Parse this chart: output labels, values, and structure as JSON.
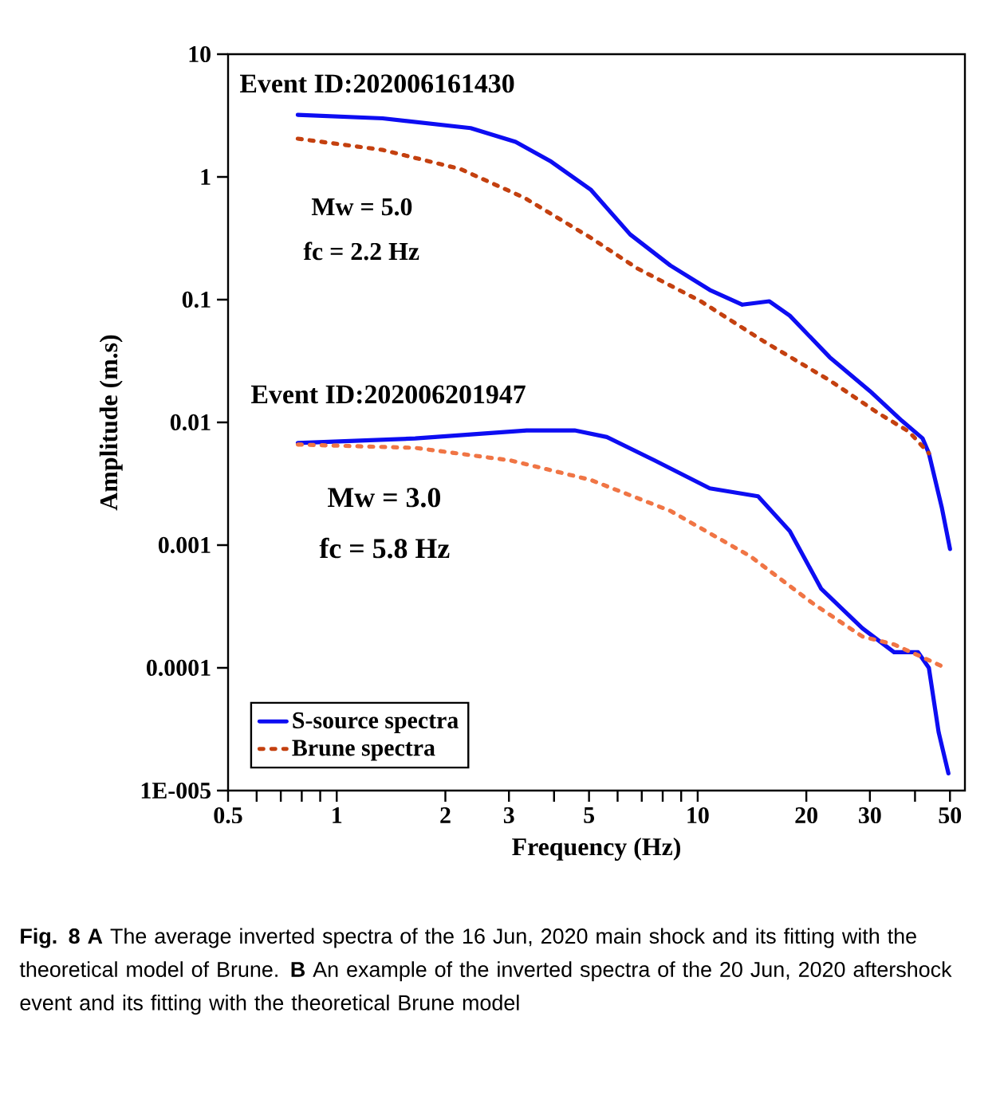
{
  "chart_data": {
    "type": "line",
    "xlabel": "Frequency (Hz)",
    "ylabel": "Amplitude (m.s)",
    "log": "xy",
    "xlim": [
      0.5,
      55
    ],
    "ylim": [
      1e-05,
      10
    ],
    "xticks": [
      0.5,
      {
        "value": 0.6,
        "label": null
      },
      {
        "value": 0.7,
        "label": null
      },
      {
        "value": 0.8,
        "label": null
      },
      {
        "value": 0.9,
        "label": null
      },
      1,
      2,
      3,
      {
        "value": 4,
        "label": null
      },
      5,
      {
        "value": 6,
        "label": null
      },
      {
        "value": 7,
        "label": null
      },
      {
        "value": 8,
        "label": null
      },
      {
        "value": 9,
        "label": null
      },
      10,
      20,
      30,
      {
        "value": 40,
        "label": null
      },
      50
    ],
    "yticks": [
      {
        "value": 1e-05,
        "label": "1E-005"
      },
      0.0001,
      0.001,
      0.01,
      0.1,
      1,
      10
    ],
    "legend": "bottom left",
    "series": [
      {
        "name": "S-source spectra",
        "color": "#0d0df2",
        "line_style": "solid",
        "x": [
          0.78,
          1.34,
          2.35,
          3.13,
          3.9,
          5.05,
          6.5,
          8.4,
          10.8,
          13.3,
          15.8,
          18,
          23.2,
          30,
          36.8,
          42,
          43.7,
          47.5,
          50
        ],
        "values": [
          3.2,
          3.0,
          2.5,
          1.93,
          1.35,
          0.79,
          0.34,
          0.19,
          0.12,
          0.091,
          0.097,
          0.074,
          0.034,
          0.018,
          0.0103,
          0.0074,
          0.0056,
          0.002,
          0.00093
        ]
      },
      {
        "name": "Brune spectra",
        "color": "#c4400f",
        "line_style": "dotted",
        "x": [
          0.78,
          1.34,
          2.2,
          3.3,
          5.05,
          6.8,
          10.2,
          15.2,
          23.2,
          31.5,
          38.5,
          43.7
        ],
        "values": [
          2.05,
          1.66,
          1.16,
          0.68,
          0.32,
          0.18,
          0.097,
          0.046,
          0.022,
          0.012,
          0.0084,
          0.0056
        ]
      },
      {
        "color": "#0d0df2",
        "line_style": "solid",
        "x": [
          0.78,
          1.65,
          3.36,
          4.56,
          5.6,
          7.6,
          10.8,
          14.7,
          18,
          22,
          28.6,
          35,
          40.8,
          43.7,
          46.5,
          49.5
        ],
        "values": [
          0.0068,
          0.0074,
          0.0086,
          0.0086,
          0.0076,
          0.0049,
          0.0029,
          0.0025,
          0.0013,
          0.00044,
          0.00021,
          0.000134,
          0.000134,
          0.0001,
          3e-05,
          1.38e-05
        ]
      },
      {
        "color": "#f07545",
        "line_style": "dotted",
        "x": [
          0.78,
          1.65,
          3.03,
          5.05,
          8.4,
          14,
          21,
          28.6,
          35,
          45,
          48.5
        ],
        "values": [
          0.0066,
          0.0062,
          0.0049,
          0.0034,
          0.0019,
          0.00081,
          0.00033,
          0.00018,
          0.000155,
          0.000111,
          0.0001
        ]
      }
    ],
    "annotations": [
      "Event ID:202006161430",
      "Mw = 5.0",
      "fc = 2.2 Hz",
      "Event ID:202006201947",
      "Mw = 3.0",
      "fc = 5.8 Hz",
      "**Fig. 8 A** The average inverted spectra of the 16 Jun, 2020 main shock and its fitting with the theoretical model of Brune. **B** An example of the inverted spectra of the 20 Jun, 2020 aftershock event and its fitting with the theoretical Brune model"
    ]
  }
}
